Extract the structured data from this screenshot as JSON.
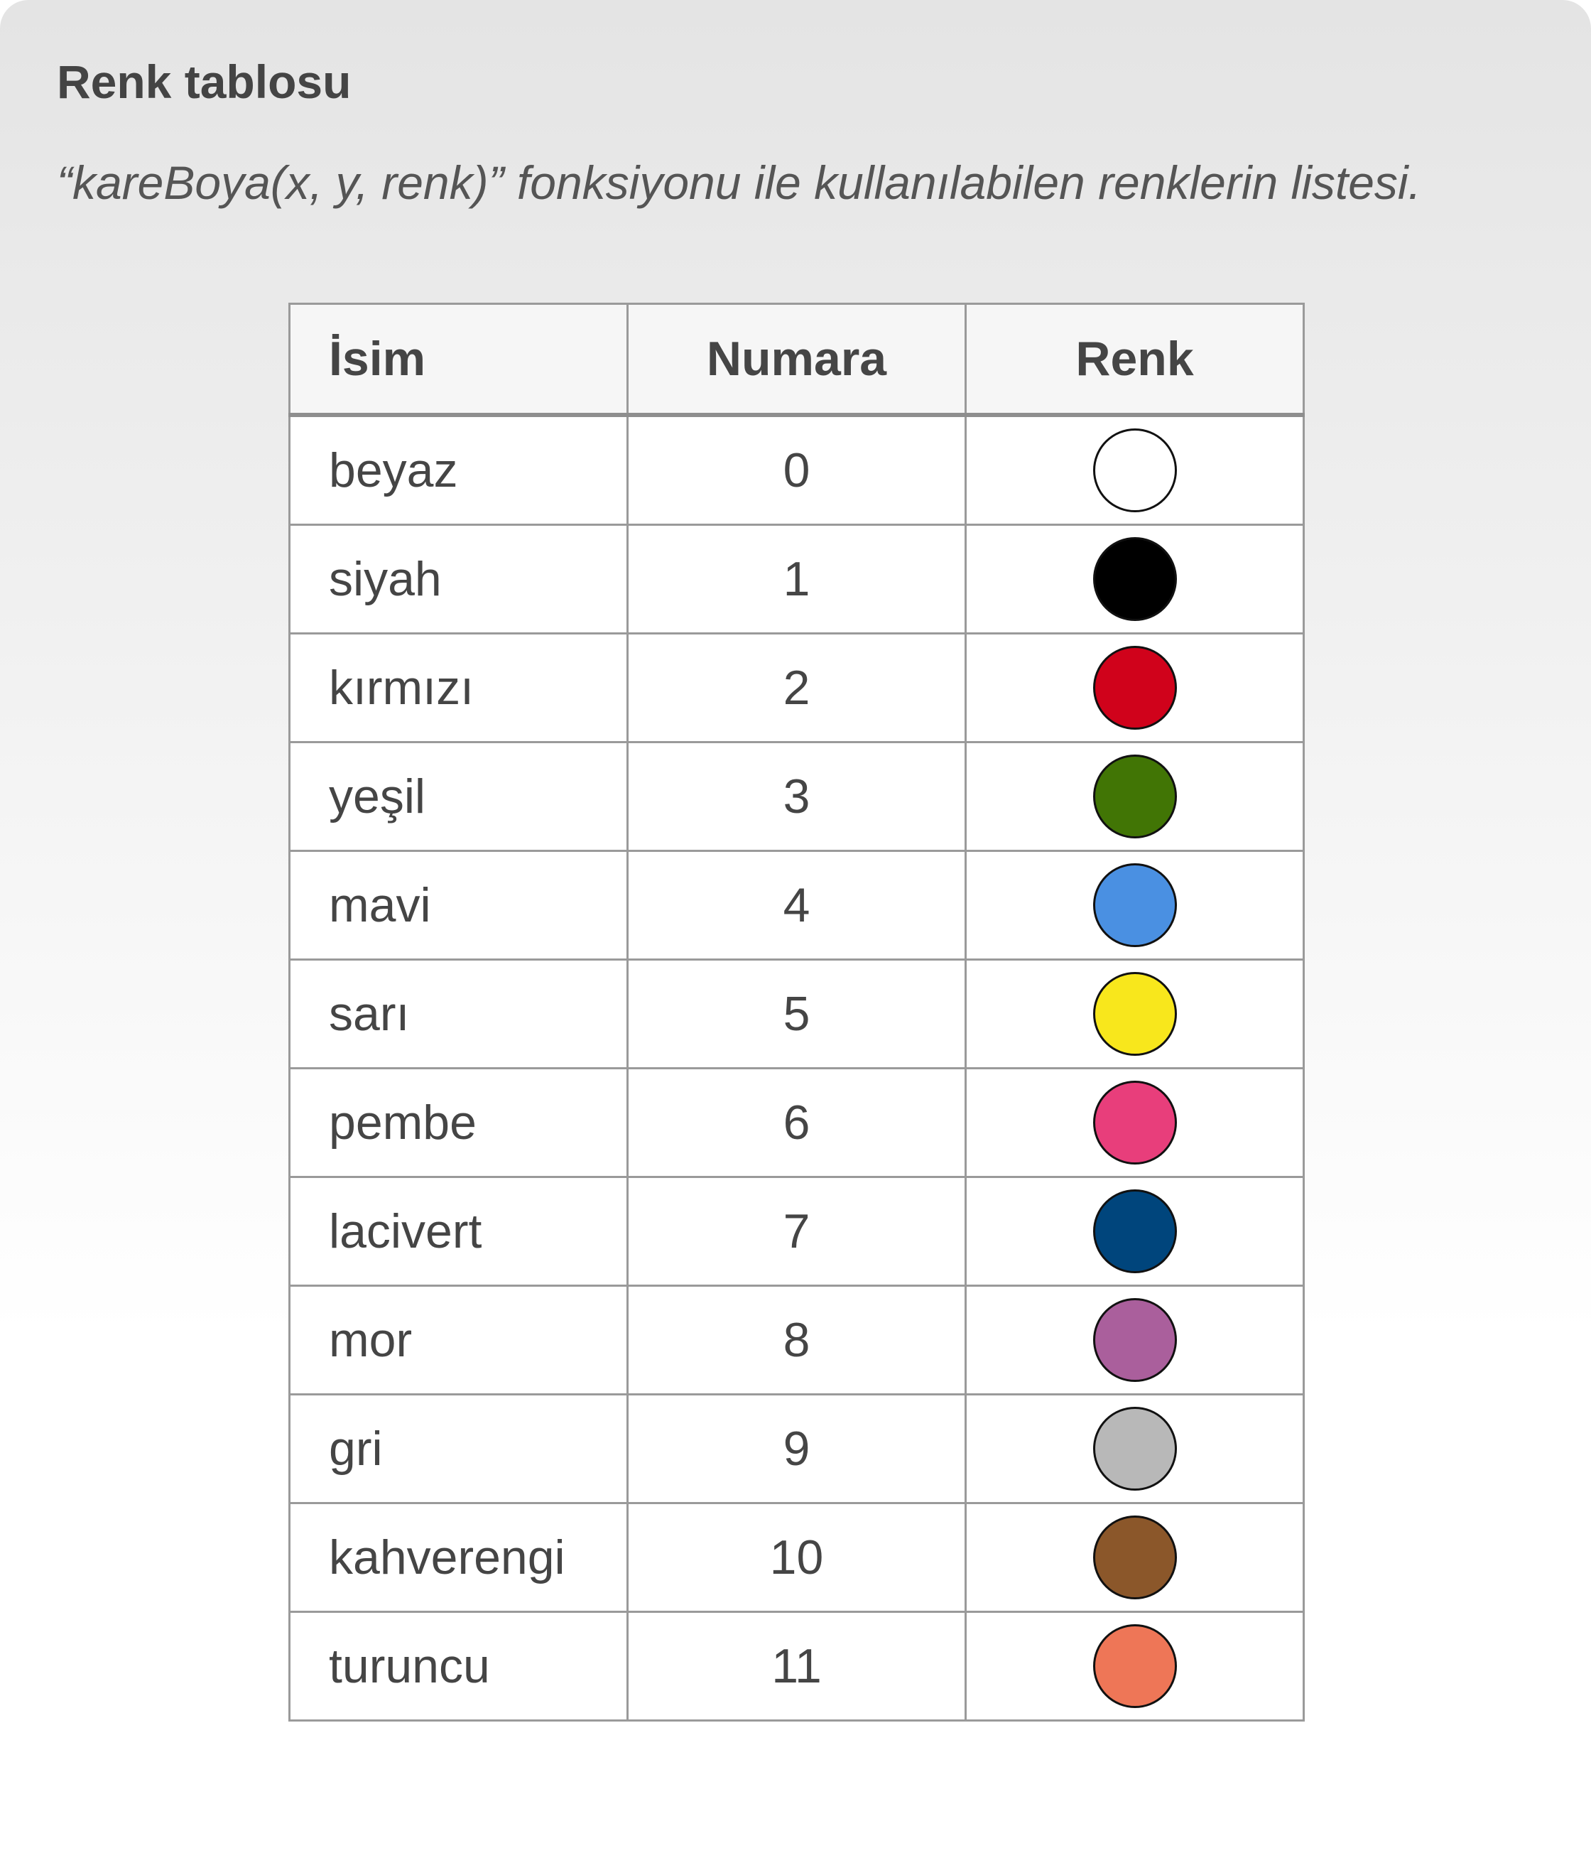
{
  "header": {
    "title": "Renk tablosu",
    "subtitle": "“kareBoya(x, y, renk)” fonksiyonu ile kullanılabilen renklerin listesi."
  },
  "table": {
    "columns": [
      "İsim",
      "Numara",
      "Renk"
    ],
    "rows": [
      {
        "name": "beyaz",
        "number": "0",
        "color": "#ffffff"
      },
      {
        "name": "siyah",
        "number": "1",
        "color": "#000000"
      },
      {
        "name": "kırmızı",
        "number": "2",
        "color": "#d0021b"
      },
      {
        "name": "yeşil",
        "number": "3",
        "color": "#417505"
      },
      {
        "name": "mavi",
        "number": "4",
        "color": "#4a90e2"
      },
      {
        "name": "sarı",
        "number": "5",
        "color": "#f8e71c"
      },
      {
        "name": "pembe",
        "number": "6",
        "color": "#e83e7b"
      },
      {
        "name": "lacivert",
        "number": "7",
        "color": "#00457c"
      },
      {
        "name": "mor",
        "number": "8",
        "color": "#aa5f9c"
      },
      {
        "name": "gri",
        "number": "9",
        "color": "#b8b8b8"
      },
      {
        "name": "kahverengi",
        "number": "10",
        "color": "#8b572a"
      },
      {
        "name": "turuncu",
        "number": "11",
        "color": "#ee7657"
      }
    ]
  }
}
